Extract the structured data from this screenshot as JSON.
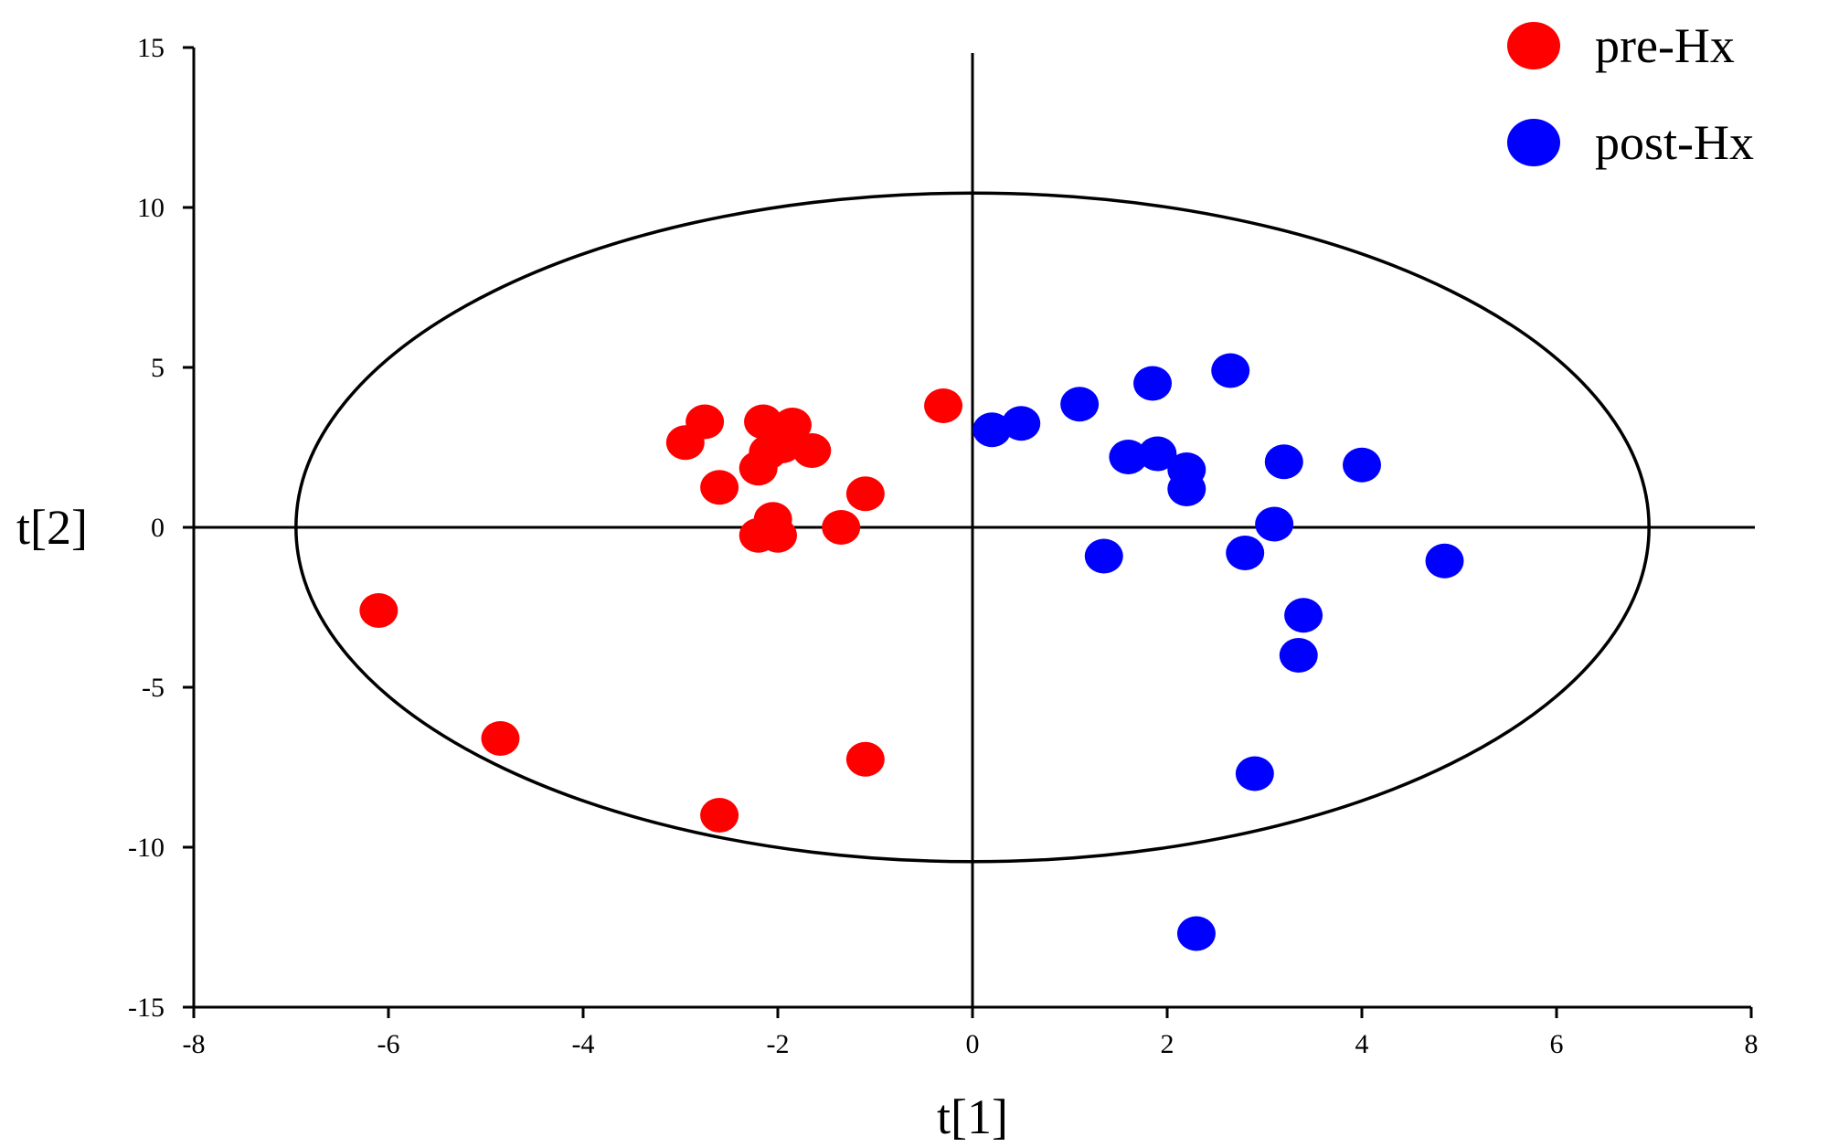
{
  "chart_data": {
    "type": "scatter",
    "xlabel": "t[1]",
    "ylabel": "t[2]",
    "xlim": [
      -8,
      8
    ],
    "ylim": [
      -15,
      15
    ],
    "xticks": [
      "-8",
      "-6",
      "-4",
      "-2",
      "0",
      "2",
      "4",
      "6",
      "8"
    ],
    "yticks": [
      "15",
      "10",
      "5",
      "0",
      "-5",
      "-10",
      "-15"
    ],
    "grid": false,
    "legend_position": "top-right",
    "ellipse": {
      "center": [
        0,
        0
      ],
      "rx": 6.95,
      "ry": 10.45
    },
    "series": [
      {
        "name": "pre-Hx",
        "color": "#ff0000",
        "points": [
          [
            -6.1,
            -2.6
          ],
          [
            -4.85,
            -6.6
          ],
          [
            -2.6,
            -9.0
          ],
          [
            -1.1,
            -7.25
          ],
          [
            -0.3,
            3.8
          ],
          [
            -1.1,
            1.05
          ],
          [
            -1.35,
            0.0
          ],
          [
            -2.0,
            -0.25
          ],
          [
            -2.2,
            -0.25
          ],
          [
            -2.05,
            0.25
          ],
          [
            -2.6,
            1.25
          ],
          [
            -2.2,
            1.85
          ],
          [
            -2.1,
            2.35
          ],
          [
            -1.95,
            2.55
          ],
          [
            -1.65,
            2.4
          ],
          [
            -1.85,
            3.2
          ],
          [
            -2.15,
            3.3
          ],
          [
            -2.75,
            3.3
          ],
          [
            -2.95,
            2.65
          ]
        ]
      },
      {
        "name": "post-Hx",
        "color": "#0000ff",
        "points": [
          [
            0.2,
            3.05
          ],
          [
            0.5,
            3.25
          ],
          [
            1.1,
            3.85
          ],
          [
            1.85,
            4.5
          ],
          [
            2.65,
            4.9
          ],
          [
            1.6,
            2.2
          ],
          [
            1.9,
            2.3
          ],
          [
            2.2,
            1.8
          ],
          [
            2.2,
            1.2
          ],
          [
            3.2,
            2.05
          ],
          [
            4.0,
            1.95
          ],
          [
            3.1,
            0.1
          ],
          [
            1.35,
            -0.9
          ],
          [
            2.8,
            -0.8
          ],
          [
            4.85,
            -1.05
          ],
          [
            3.4,
            -2.75
          ],
          [
            3.35,
            -4.0
          ],
          [
            2.9,
            -7.7
          ],
          [
            2.3,
            -12.7
          ]
        ]
      }
    ]
  }
}
